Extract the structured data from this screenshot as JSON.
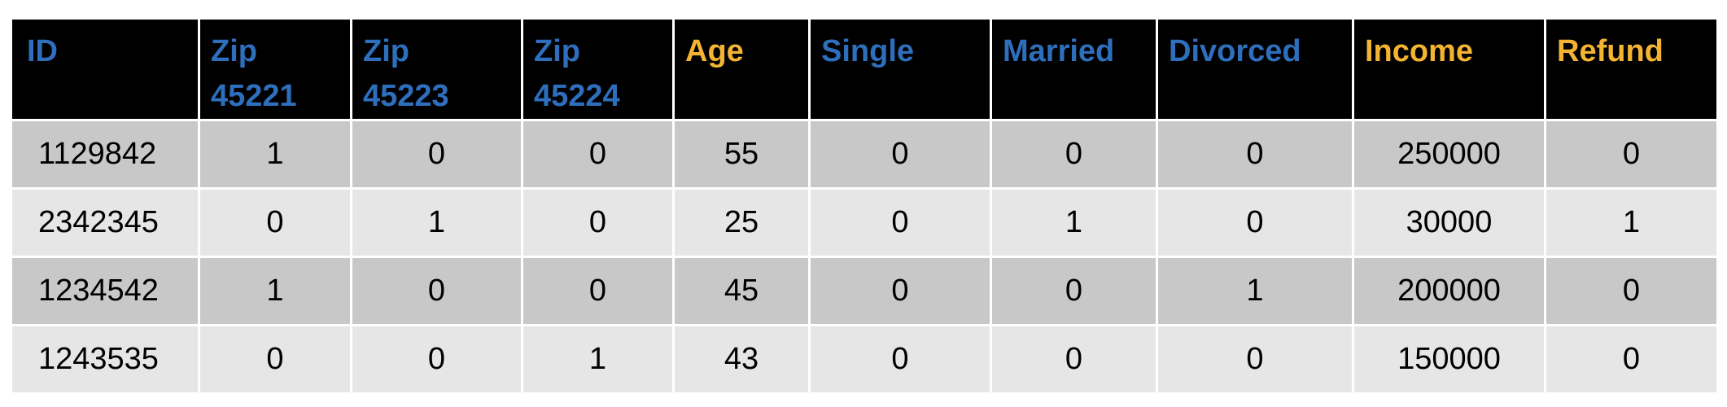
{
  "table": {
    "columns": [
      {
        "label": "ID",
        "color": "blue"
      },
      {
        "label": "Zip\n45221",
        "color": "blue"
      },
      {
        "label": "Zip\n45223",
        "color": "blue"
      },
      {
        "label": "Zip\n45224",
        "color": "blue"
      },
      {
        "label": "Age",
        "color": "orange"
      },
      {
        "label": "Single",
        "color": "blue"
      },
      {
        "label": "Married",
        "color": "blue"
      },
      {
        "label": "Divorced",
        "color": "blue"
      },
      {
        "label": "Income",
        "color": "orange"
      },
      {
        "label": "Refund",
        "color": "orange"
      }
    ],
    "rows": [
      [
        "1129842",
        "1",
        "0",
        "0",
        "55",
        "0",
        "0",
        "0",
        "250000",
        "0"
      ],
      [
        "2342345",
        "0",
        "1",
        "0",
        "25",
        "0",
        "1",
        "0",
        "30000",
        "1"
      ],
      [
        "1234542",
        "1",
        "0",
        "0",
        "45",
        "0",
        "0",
        "1",
        "200000",
        "0"
      ],
      [
        "1243535",
        "0",
        "0",
        "1",
        "43",
        "0",
        "0",
        "0",
        "150000",
        "0"
      ]
    ]
  },
  "colors": {
    "header_bg": "#000000",
    "blue": "#2e6fbd",
    "orange": "#f4b432",
    "row_dark": "#c8c8c8",
    "row_light": "#e6e6e6"
  }
}
